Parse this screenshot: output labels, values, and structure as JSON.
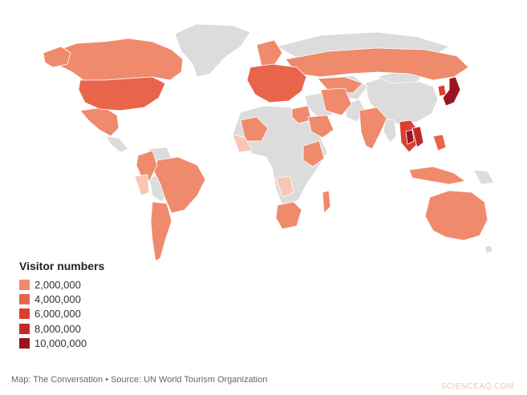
{
  "map": {
    "legend_title": "Visitor numbers",
    "legend": [
      {
        "label": "2,000,000",
        "color": "#f08a6c"
      },
      {
        "label": "4,000,000",
        "color": "#e8654b"
      },
      {
        "label": "6,000,000",
        "color": "#dc3e30"
      },
      {
        "label": "8,000,000",
        "color": "#c22a27"
      },
      {
        "label": "10,000,000",
        "color": "#9b1320"
      }
    ],
    "no_data_color": "#dcdcdc",
    "light_color": "#f7c7b3",
    "credit": "Map: The Conversation • Source: UN World Tourism Organization",
    "watermark": "SCIENCEAQ.COM"
  }
}
